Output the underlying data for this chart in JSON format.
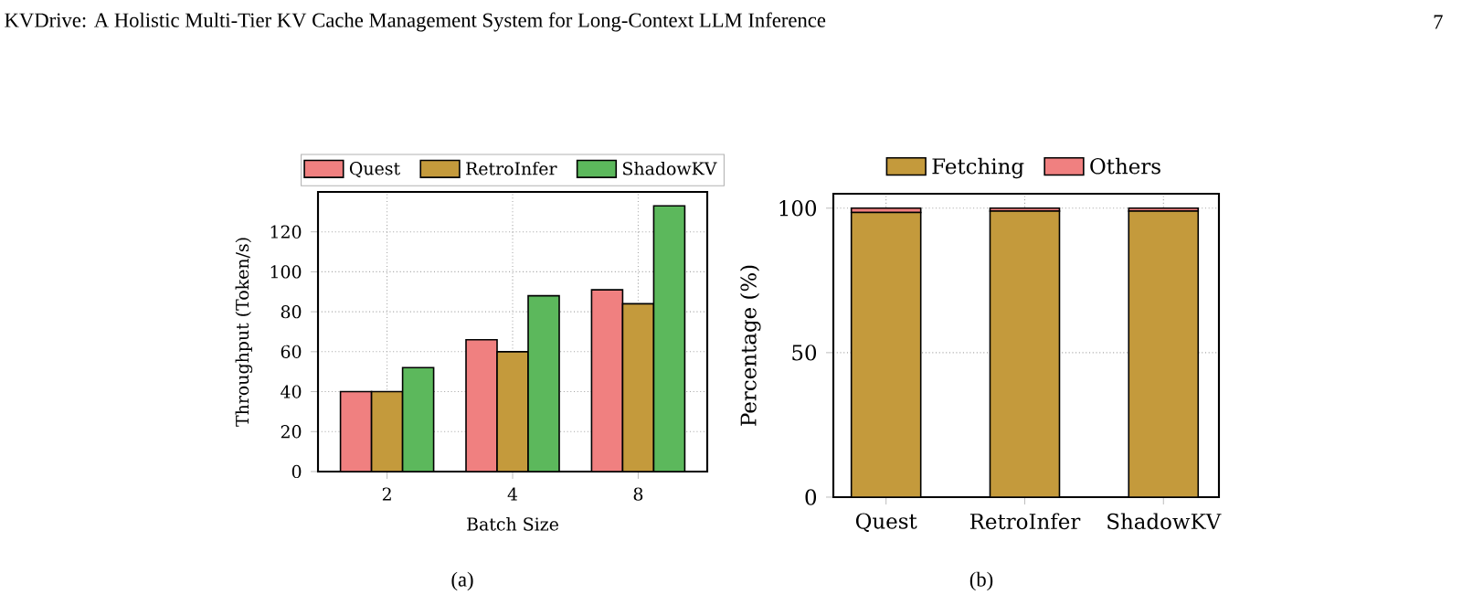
{
  "chart_data": [
    {
      "type": "bar",
      "xlabel": "Batch Size",
      "ylabel": "Throughput (Token/s)",
      "categories": [
        "2",
        "4",
        "8"
      ],
      "series": [
        {
          "name": "Quest",
          "color": "#f08080",
          "values": [
            40,
            66,
            91
          ]
        },
        {
          "name": "RetroInfer",
          "color": "#c49a3c",
          "values": [
            40,
            60,
            84
          ]
        },
        {
          "name": "ShadowKV",
          "color": "#5cb85c",
          "values": [
            52,
            88,
            133
          ]
        }
      ],
      "ylim": [
        0,
        140
      ],
      "yticks": [
        0,
        20,
        40,
        60,
        80,
        100,
        120
      ],
      "grid": true,
      "legend": "top",
      "annotations": [
        "KVDrive: A Holistic Multi-Tier KV Cache Management System for Long-Context LLM Inference",
        "7",
        "(a)"
      ]
    },
    {
      "type": "bar",
      "ylabel": "Percentage (%)",
      "stacked": true,
      "categories": [
        "Quest",
        "RetroInfer",
        "ShadowKV"
      ],
      "series": [
        {
          "name": "Fetching",
          "color": "#c49a3c",
          "values": [
            98.5,
            99,
            99
          ]
        },
        {
          "name": "Others",
          "color": "#f08080",
          "values": [
            1.5,
            1,
            1
          ]
        }
      ],
      "ylim": [
        0,
        105
      ],
      "yticks": [
        0,
        50,
        100
      ],
      "grid": true,
      "legend": "top",
      "annotations": [
        "(b)"
      ]
    }
  ]
}
